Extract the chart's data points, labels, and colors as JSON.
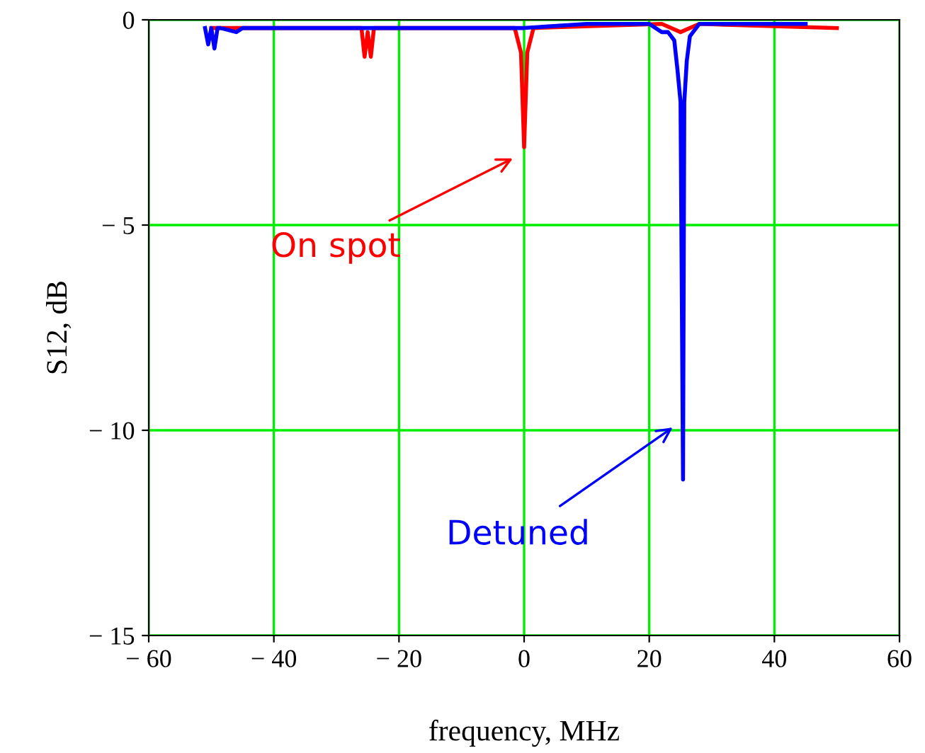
{
  "chart_data": {
    "type": "line",
    "xlabel": "frequency, MHz",
    "ylabel": "S12, dB",
    "series": [
      {
        "color": "#ff0000",
        "x": [
          -50,
          -26,
          -25.5,
          -25,
          -24.5,
          -24,
          -1.5,
          -0.5,
          0,
          0.5,
          1.5,
          22,
          25,
          28,
          50
        ],
        "values": [
          -0.2,
          -0.2,
          -0.9,
          -0.3,
          -0.9,
          -0.2,
          -0.2,
          -0.8,
          -3.1,
          -0.8,
          -0.2,
          -0.1,
          -0.3,
          -0.1,
          -0.2
        ]
      },
      {
        "color": "#0000ff",
        "x": [
          -51,
          -50.5,
          -50,
          -49.5,
          -49,
          -48.5,
          -46,
          -45,
          -10,
          0,
          10,
          20,
          22,
          23,
          24,
          24.5,
          25,
          25.4,
          25.6,
          26,
          26.5,
          27,
          28,
          45
        ],
        "values": [
          -0.2,
          -0.6,
          -0.2,
          -0.7,
          -0.2,
          -0.2,
          -0.3,
          -0.2,
          -0.2,
          -0.2,
          -0.1,
          -0.1,
          -0.3,
          -0.3,
          -0.5,
          -1.2,
          -2.0,
          -11.2,
          -2.0,
          -1.0,
          -0.4,
          -0.3,
          -0.1,
          -0.1
        ]
      }
    ],
    "xlim": [
      -60,
      60
    ],
    "ylim": [
      -15,
      0
    ],
    "xticks": [
      {
        "value": -60,
        "label": "− 60"
      },
      {
        "value": -40,
        "label": "− 40"
      },
      {
        "value": -20,
        "label": "− 20"
      },
      0,
      20,
      40,
      60
    ],
    "yticks": [
      {
        "value": -15,
        "label": "− 15"
      },
      {
        "value": -10,
        "label": "− 10"
      },
      {
        "value": -5,
        "label": "− 5"
      },
      0
    ],
    "grid": true,
    "annotations": [
      "On spot",
      "Detuned"
    ]
  }
}
